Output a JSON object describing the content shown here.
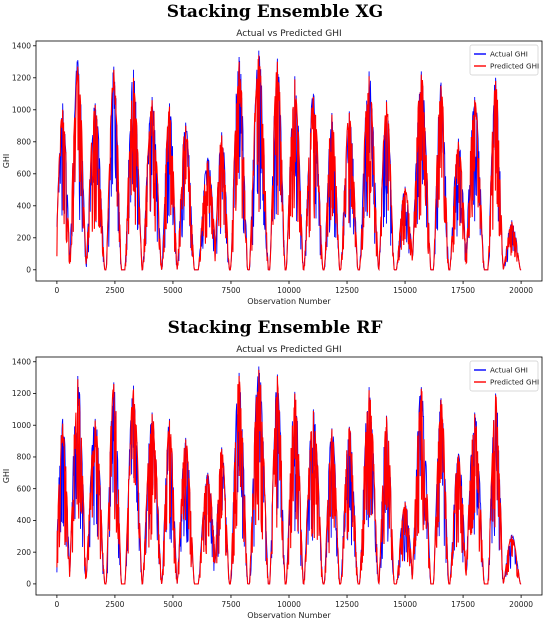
{
  "panels": [
    {
      "heading": "Stacking Ensemble XG",
      "chart_data": {
        "type": "line",
        "title": "Actual vs Predicted GHI",
        "xlabel": "Observation Number",
        "ylabel": "GHI",
        "xlim": [
          -900,
          20900
        ],
        "ylim": [
          -70,
          1430
        ],
        "xticks": [
          0,
          2500,
          5000,
          7500,
          10000,
          12500,
          15000,
          17500,
          20000
        ],
        "yticks": [
          0,
          200,
          400,
          600,
          800,
          1000,
          1200,
          1400
        ],
        "grid": false,
        "legend": "top-right",
        "series": [
          {
            "name": "Actual GHI",
            "color": "#0000ff",
            "peaks": [
              {
                "x": 250,
                "y": 1040
              },
              {
                "x": 900,
                "y": 1310
              },
              {
                "x": 1650,
                "y": 1040
              },
              {
                "x": 2450,
                "y": 1270
              },
              {
                "x": 3300,
                "y": 1250
              },
              {
                "x": 4100,
                "y": 1080
              },
              {
                "x": 4850,
                "y": 1040
              },
              {
                "x": 5550,
                "y": 920
              },
              {
                "x": 6500,
                "y": 700
              },
              {
                "x": 7100,
                "y": 860
              },
              {
                "x": 7850,
                "y": 1330
              },
              {
                "x": 8700,
                "y": 1370
              },
              {
                "x": 9500,
                "y": 1320
              },
              {
                "x": 10250,
                "y": 1210
              },
              {
                "x": 11050,
                "y": 1100
              },
              {
                "x": 11850,
                "y": 980
              },
              {
                "x": 12600,
                "y": 990
              },
              {
                "x": 13450,
                "y": 1240
              },
              {
                "x": 14200,
                "y": 1060
              },
              {
                "x": 15000,
                "y": 520
              },
              {
                "x": 15700,
                "y": 1240
              },
              {
                "x": 16550,
                "y": 1170
              },
              {
                "x": 17300,
                "y": 820
              },
              {
                "x": 18000,
                "y": 1080
              },
              {
                "x": 18900,
                "y": 1200
              },
              {
                "x": 19600,
                "y": 310
              }
            ]
          },
          {
            "name": "Predicted GHI",
            "color": "#ff0000",
            "peaks": [
              {
                "x": 250,
                "y": 1000
              },
              {
                "x": 900,
                "y": 1270
              },
              {
                "x": 1650,
                "y": 1030
              },
              {
                "x": 2450,
                "y": 1250
              },
              {
                "x": 3300,
                "y": 1200
              },
              {
                "x": 4100,
                "y": 1060
              },
              {
                "x": 4850,
                "y": 1020
              },
              {
                "x": 5550,
                "y": 900
              },
              {
                "x": 6500,
                "y": 680
              },
              {
                "x": 7100,
                "y": 840
              },
              {
                "x": 7850,
                "y": 1300
              },
              {
                "x": 8700,
                "y": 1340
              },
              {
                "x": 9500,
                "y": 1300
              },
              {
                "x": 10250,
                "y": 1190
              },
              {
                "x": 11050,
                "y": 1080
              },
              {
                "x": 11850,
                "y": 970
              },
              {
                "x": 12600,
                "y": 980
              },
              {
                "x": 13450,
                "y": 1210
              },
              {
                "x": 14200,
                "y": 1050
              },
              {
                "x": 15000,
                "y": 510
              },
              {
                "x": 15700,
                "y": 1220
              },
              {
                "x": 16550,
                "y": 1150
              },
              {
                "x": 17300,
                "y": 800
              },
              {
                "x": 18000,
                "y": 1060
              },
              {
                "x": 18900,
                "y": 1180
              },
              {
                "x": 19600,
                "y": 300
              }
            ]
          }
        ]
      }
    },
    {
      "heading": "Stacking Ensemble RF",
      "chart_data": {
        "type": "line",
        "title": "Actual vs Predicted GHI",
        "xlabel": "Observation Number",
        "ylabel": "GHI",
        "xlim": [
          -900,
          20900
        ],
        "ylim": [
          -70,
          1430
        ],
        "xticks": [
          0,
          2500,
          5000,
          7500,
          10000,
          12500,
          15000,
          17500,
          20000
        ],
        "yticks": [
          0,
          200,
          400,
          600,
          800,
          1000,
          1200,
          1400
        ],
        "grid": false,
        "legend": "top-right",
        "series": [
          {
            "name": "Actual GHI",
            "color": "#0000ff",
            "peaks": [
              {
                "x": 250,
                "y": 1040
              },
              {
                "x": 900,
                "y": 1310
              },
              {
                "x": 1650,
                "y": 1040
              },
              {
                "x": 2450,
                "y": 1270
              },
              {
                "x": 3300,
                "y": 1250
              },
              {
                "x": 4100,
                "y": 1080
              },
              {
                "x": 4850,
                "y": 1040
              },
              {
                "x": 5550,
                "y": 920
              },
              {
                "x": 6500,
                "y": 700
              },
              {
                "x": 7100,
                "y": 860
              },
              {
                "x": 7850,
                "y": 1330
              },
              {
                "x": 8700,
                "y": 1370
              },
              {
                "x": 9500,
                "y": 1320
              },
              {
                "x": 10250,
                "y": 1210
              },
              {
                "x": 11050,
                "y": 1100
              },
              {
                "x": 11850,
                "y": 980
              },
              {
                "x": 12600,
                "y": 990
              },
              {
                "x": 13450,
                "y": 1240
              },
              {
                "x": 14200,
                "y": 1060
              },
              {
                "x": 15000,
                "y": 520
              },
              {
                "x": 15700,
                "y": 1240
              },
              {
                "x": 16550,
                "y": 1170
              },
              {
                "x": 17300,
                "y": 820
              },
              {
                "x": 18000,
                "y": 1080
              },
              {
                "x": 18900,
                "y": 1200
              },
              {
                "x": 19600,
                "y": 310
              }
            ]
          },
          {
            "name": "Predicted GHI",
            "color": "#ff0000",
            "peaks": [
              {
                "x": 250,
                "y": 1010
              },
              {
                "x": 900,
                "y": 1290
              },
              {
                "x": 1650,
                "y": 1030
              },
              {
                "x": 2450,
                "y": 1260
              },
              {
                "x": 3300,
                "y": 1220
              },
              {
                "x": 4100,
                "y": 1070
              },
              {
                "x": 4850,
                "y": 1030
              },
              {
                "x": 5550,
                "y": 910
              },
              {
                "x": 6500,
                "y": 690
              },
              {
                "x": 7100,
                "y": 850
              },
              {
                "x": 7850,
                "y": 1310
              },
              {
                "x": 8700,
                "y": 1350
              },
              {
                "x": 9500,
                "y": 1310
              },
              {
                "x": 10250,
                "y": 1200
              },
              {
                "x": 11050,
                "y": 1090
              },
              {
                "x": 11850,
                "y": 975
              },
              {
                "x": 12600,
                "y": 985
              },
              {
                "x": 13450,
                "y": 1220
              },
              {
                "x": 14200,
                "y": 1055
              },
              {
                "x": 15000,
                "y": 515
              },
              {
                "x": 15700,
                "y": 1230
              },
              {
                "x": 16550,
                "y": 1160
              },
              {
                "x": 17300,
                "y": 810
              },
              {
                "x": 18000,
                "y": 1070
              },
              {
                "x": 18900,
                "y": 1190
              },
              {
                "x": 19600,
                "y": 305
              }
            ]
          }
        ]
      }
    }
  ]
}
